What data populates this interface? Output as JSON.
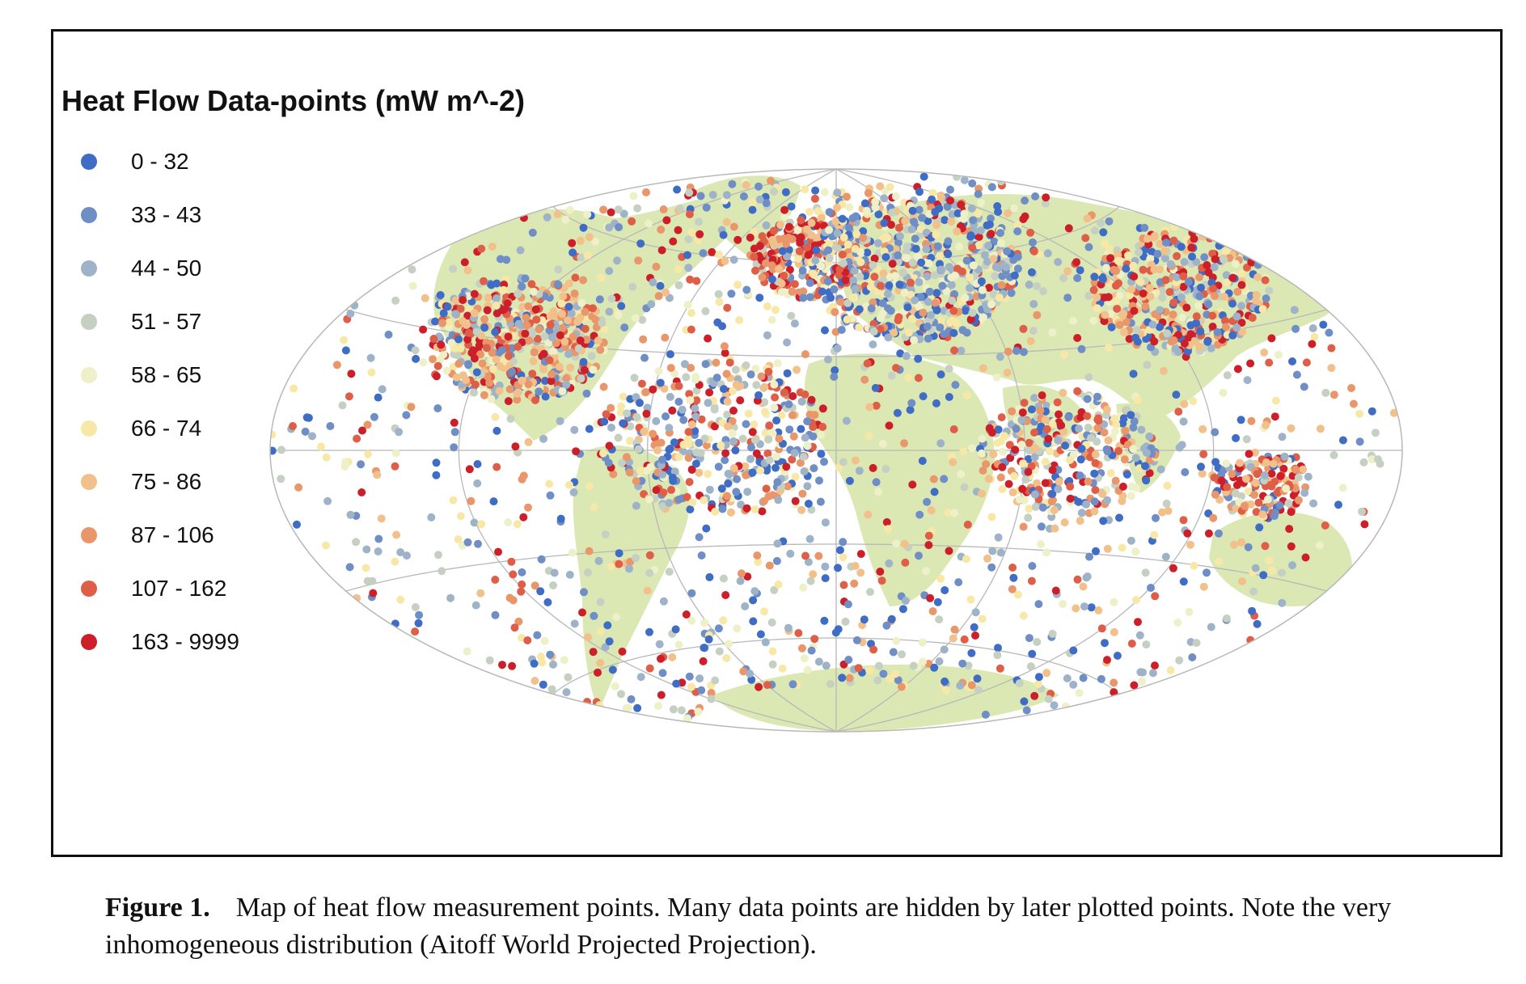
{
  "legend": {
    "title": "Heat Flow Data-points (mW m^-2)",
    "classes": [
      {
        "label": "0 - 32",
        "color": "#3f6cc4"
      },
      {
        "label": "33 - 43",
        "color": "#6f8ec6"
      },
      {
        "label": "44 - 50",
        "color": "#9fb3c8"
      },
      {
        "label": "51 - 57",
        "color": "#c5d0c3"
      },
      {
        "label": "58 - 65",
        "color": "#eef0c8"
      },
      {
        "label": "66 - 74",
        "color": "#f8e8a8"
      },
      {
        "label": "75 - 86",
        "color": "#f2c08a"
      },
      {
        "label": "87 - 106",
        "color": "#e8966a"
      },
      {
        "label": "107 - 162",
        "color": "#de5e48"
      },
      {
        "label": "163 - 9999",
        "color": "#cc1f2a"
      }
    ]
  },
  "map": {
    "projection": "Aitoff",
    "land_color": "#dbe8b4",
    "graticule_color": "#b8b8b8"
  },
  "caption": {
    "label": "Figure 1.",
    "text": "Map of heat flow measurement points. Many data points are hidden by later plotted points. Note the very inhomogeneous distribution (Aitoff World Projected Projection)."
  }
}
